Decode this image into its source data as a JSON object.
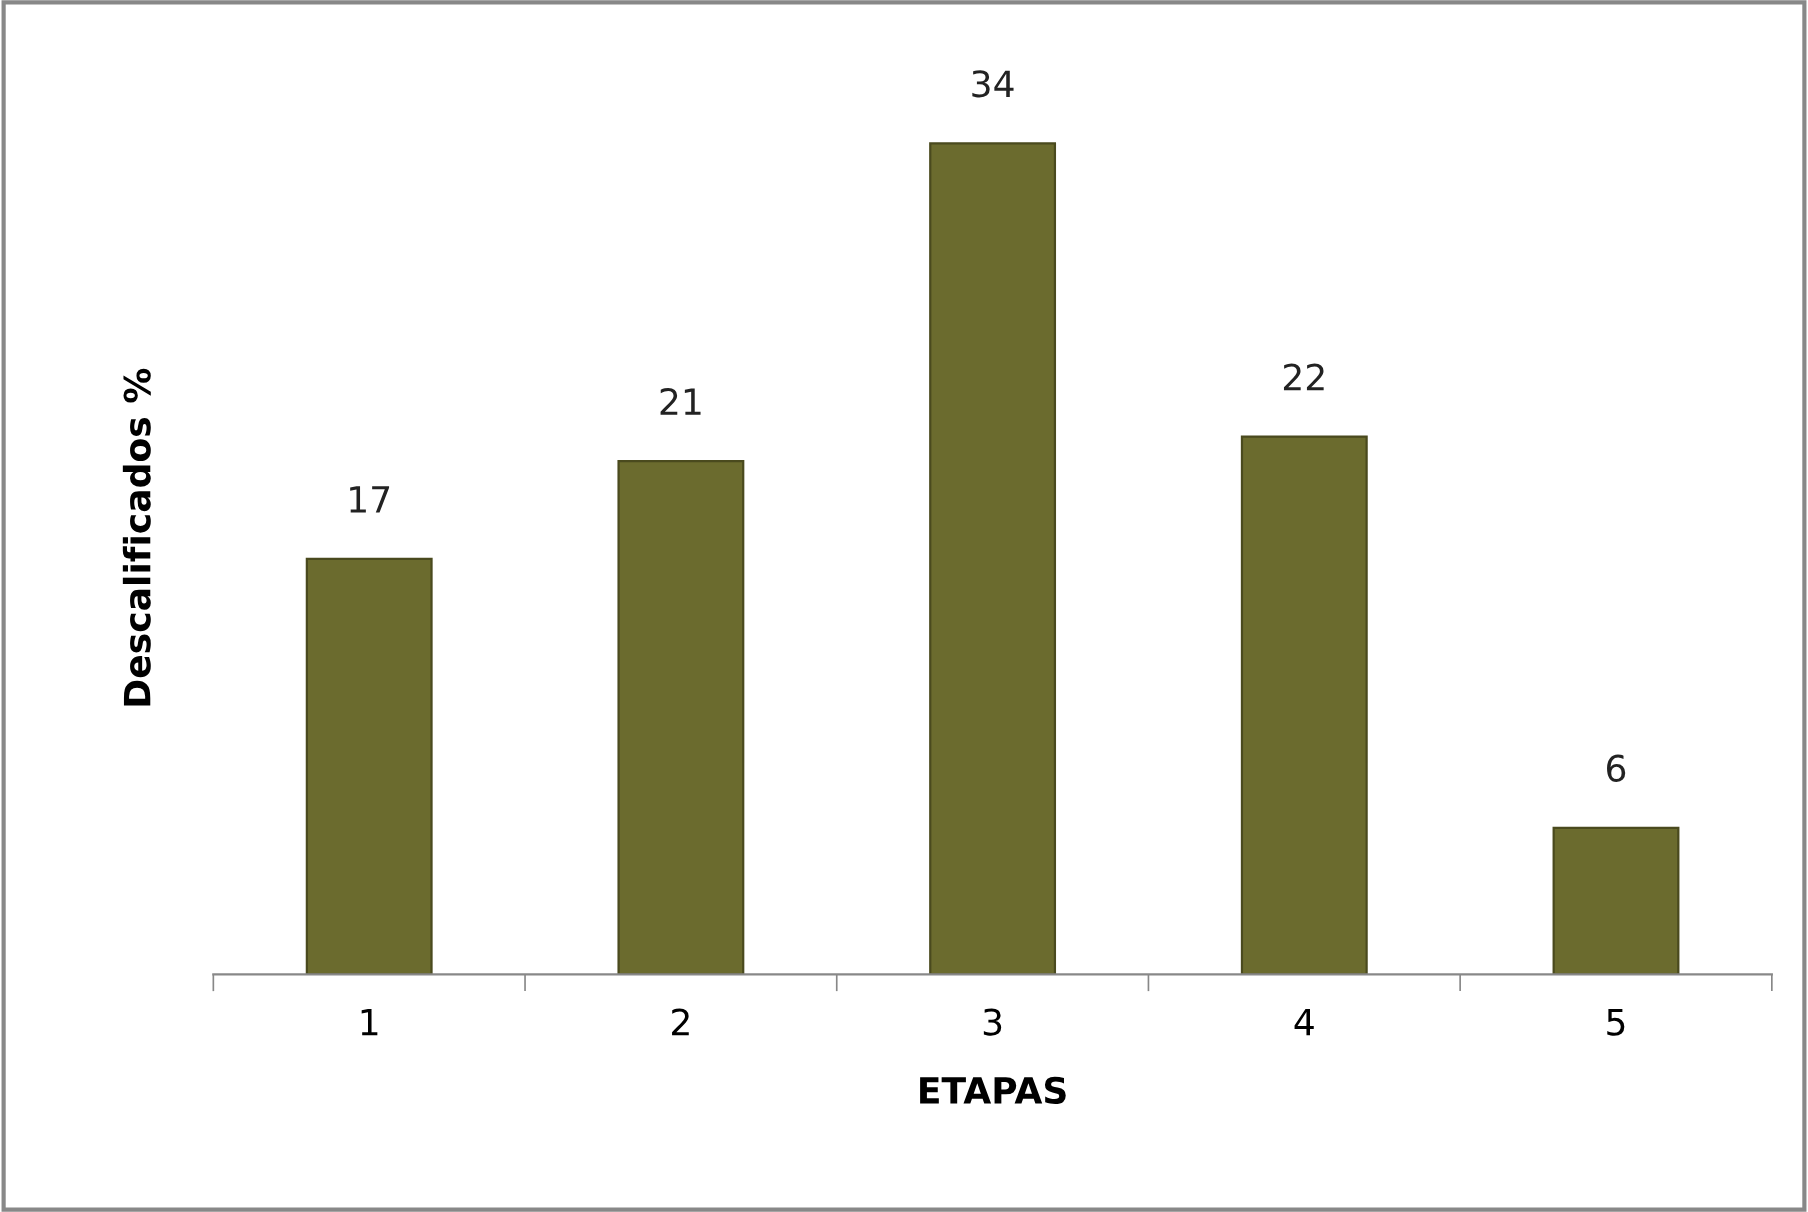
{
  "chart_data": {
    "type": "bar",
    "xlabel": "ETAPAS",
    "ylabel": "Descalificados %",
    "categories": [
      "1",
      "2",
      "3",
      "4",
      "5"
    ],
    "values": [
      17,
      21,
      34,
      22,
      6
    ],
    "color": "#6b6b2e",
    "data_labels": true,
    "grid": false,
    "legend": false
  }
}
